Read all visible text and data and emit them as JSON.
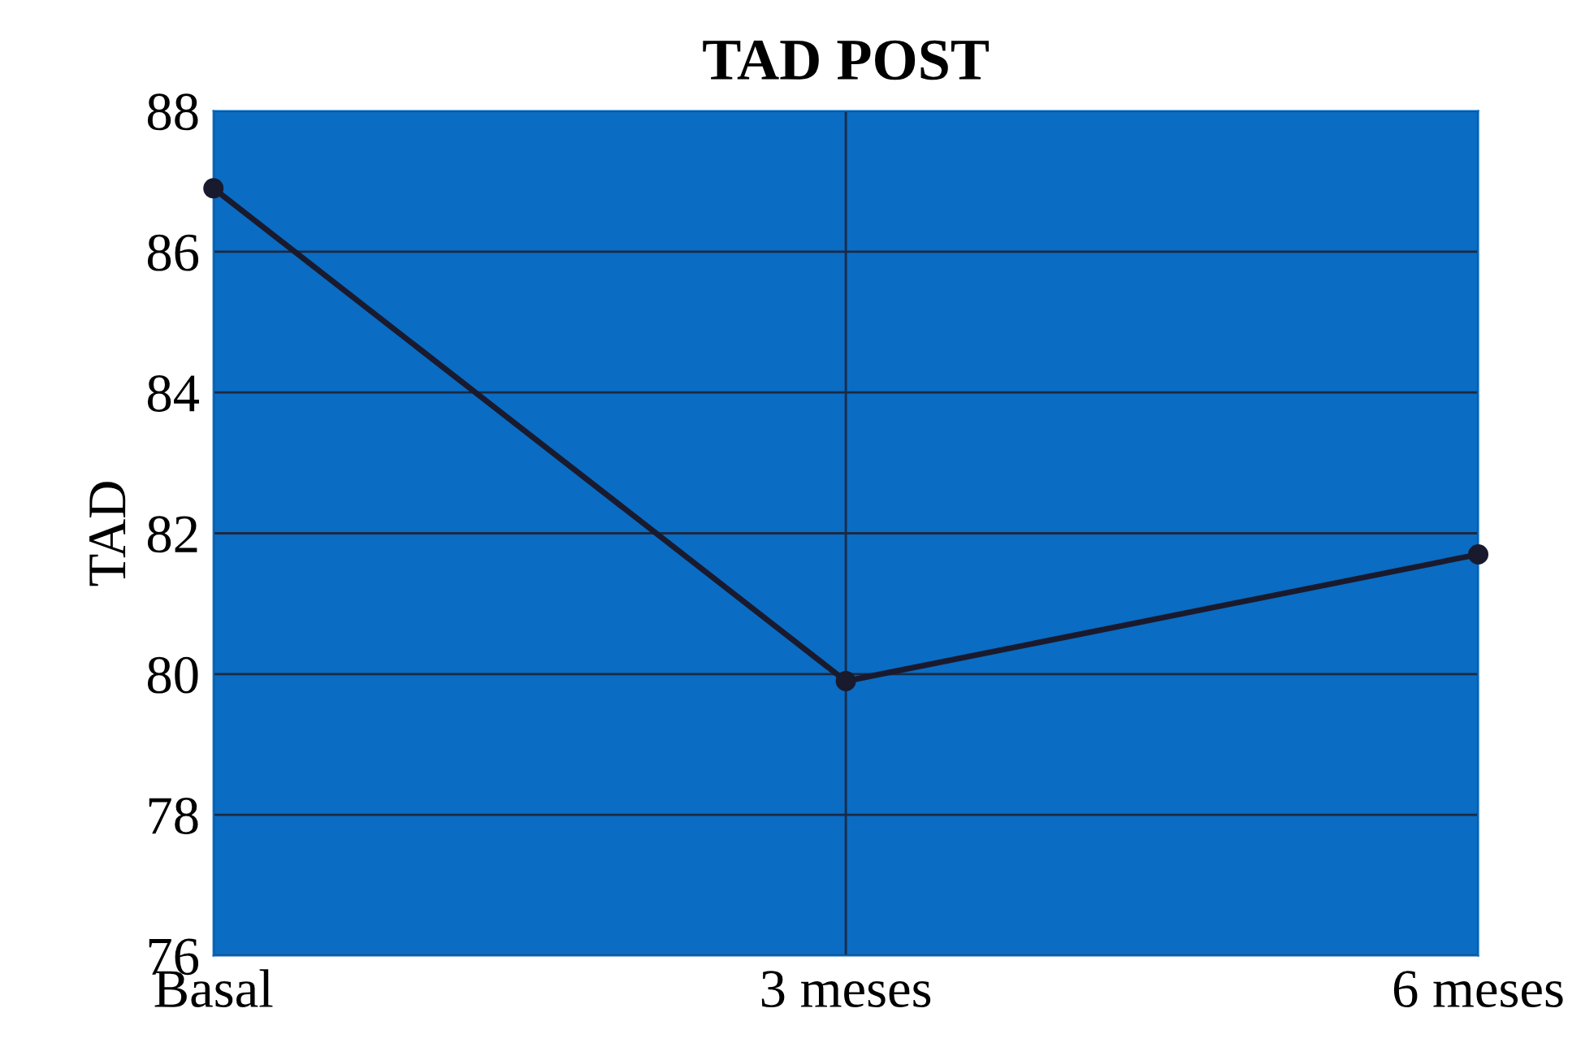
{
  "chart_data": {
    "type": "line",
    "title": "TAD POST",
    "ylabel": "TAD",
    "categories": [
      "Basal",
      "3 meses",
      "6 meses"
    ],
    "series": [
      {
        "color": "#1a1a2e",
        "values": [
          86.9,
          79.9,
          81.7
        ]
      }
    ],
    "ylim": [
      76,
      88
    ],
    "yticks": [
      76,
      78,
      80,
      82,
      84,
      86,
      88
    ],
    "grid": true,
    "marker": "circle",
    "line_style": "solid"
  }
}
